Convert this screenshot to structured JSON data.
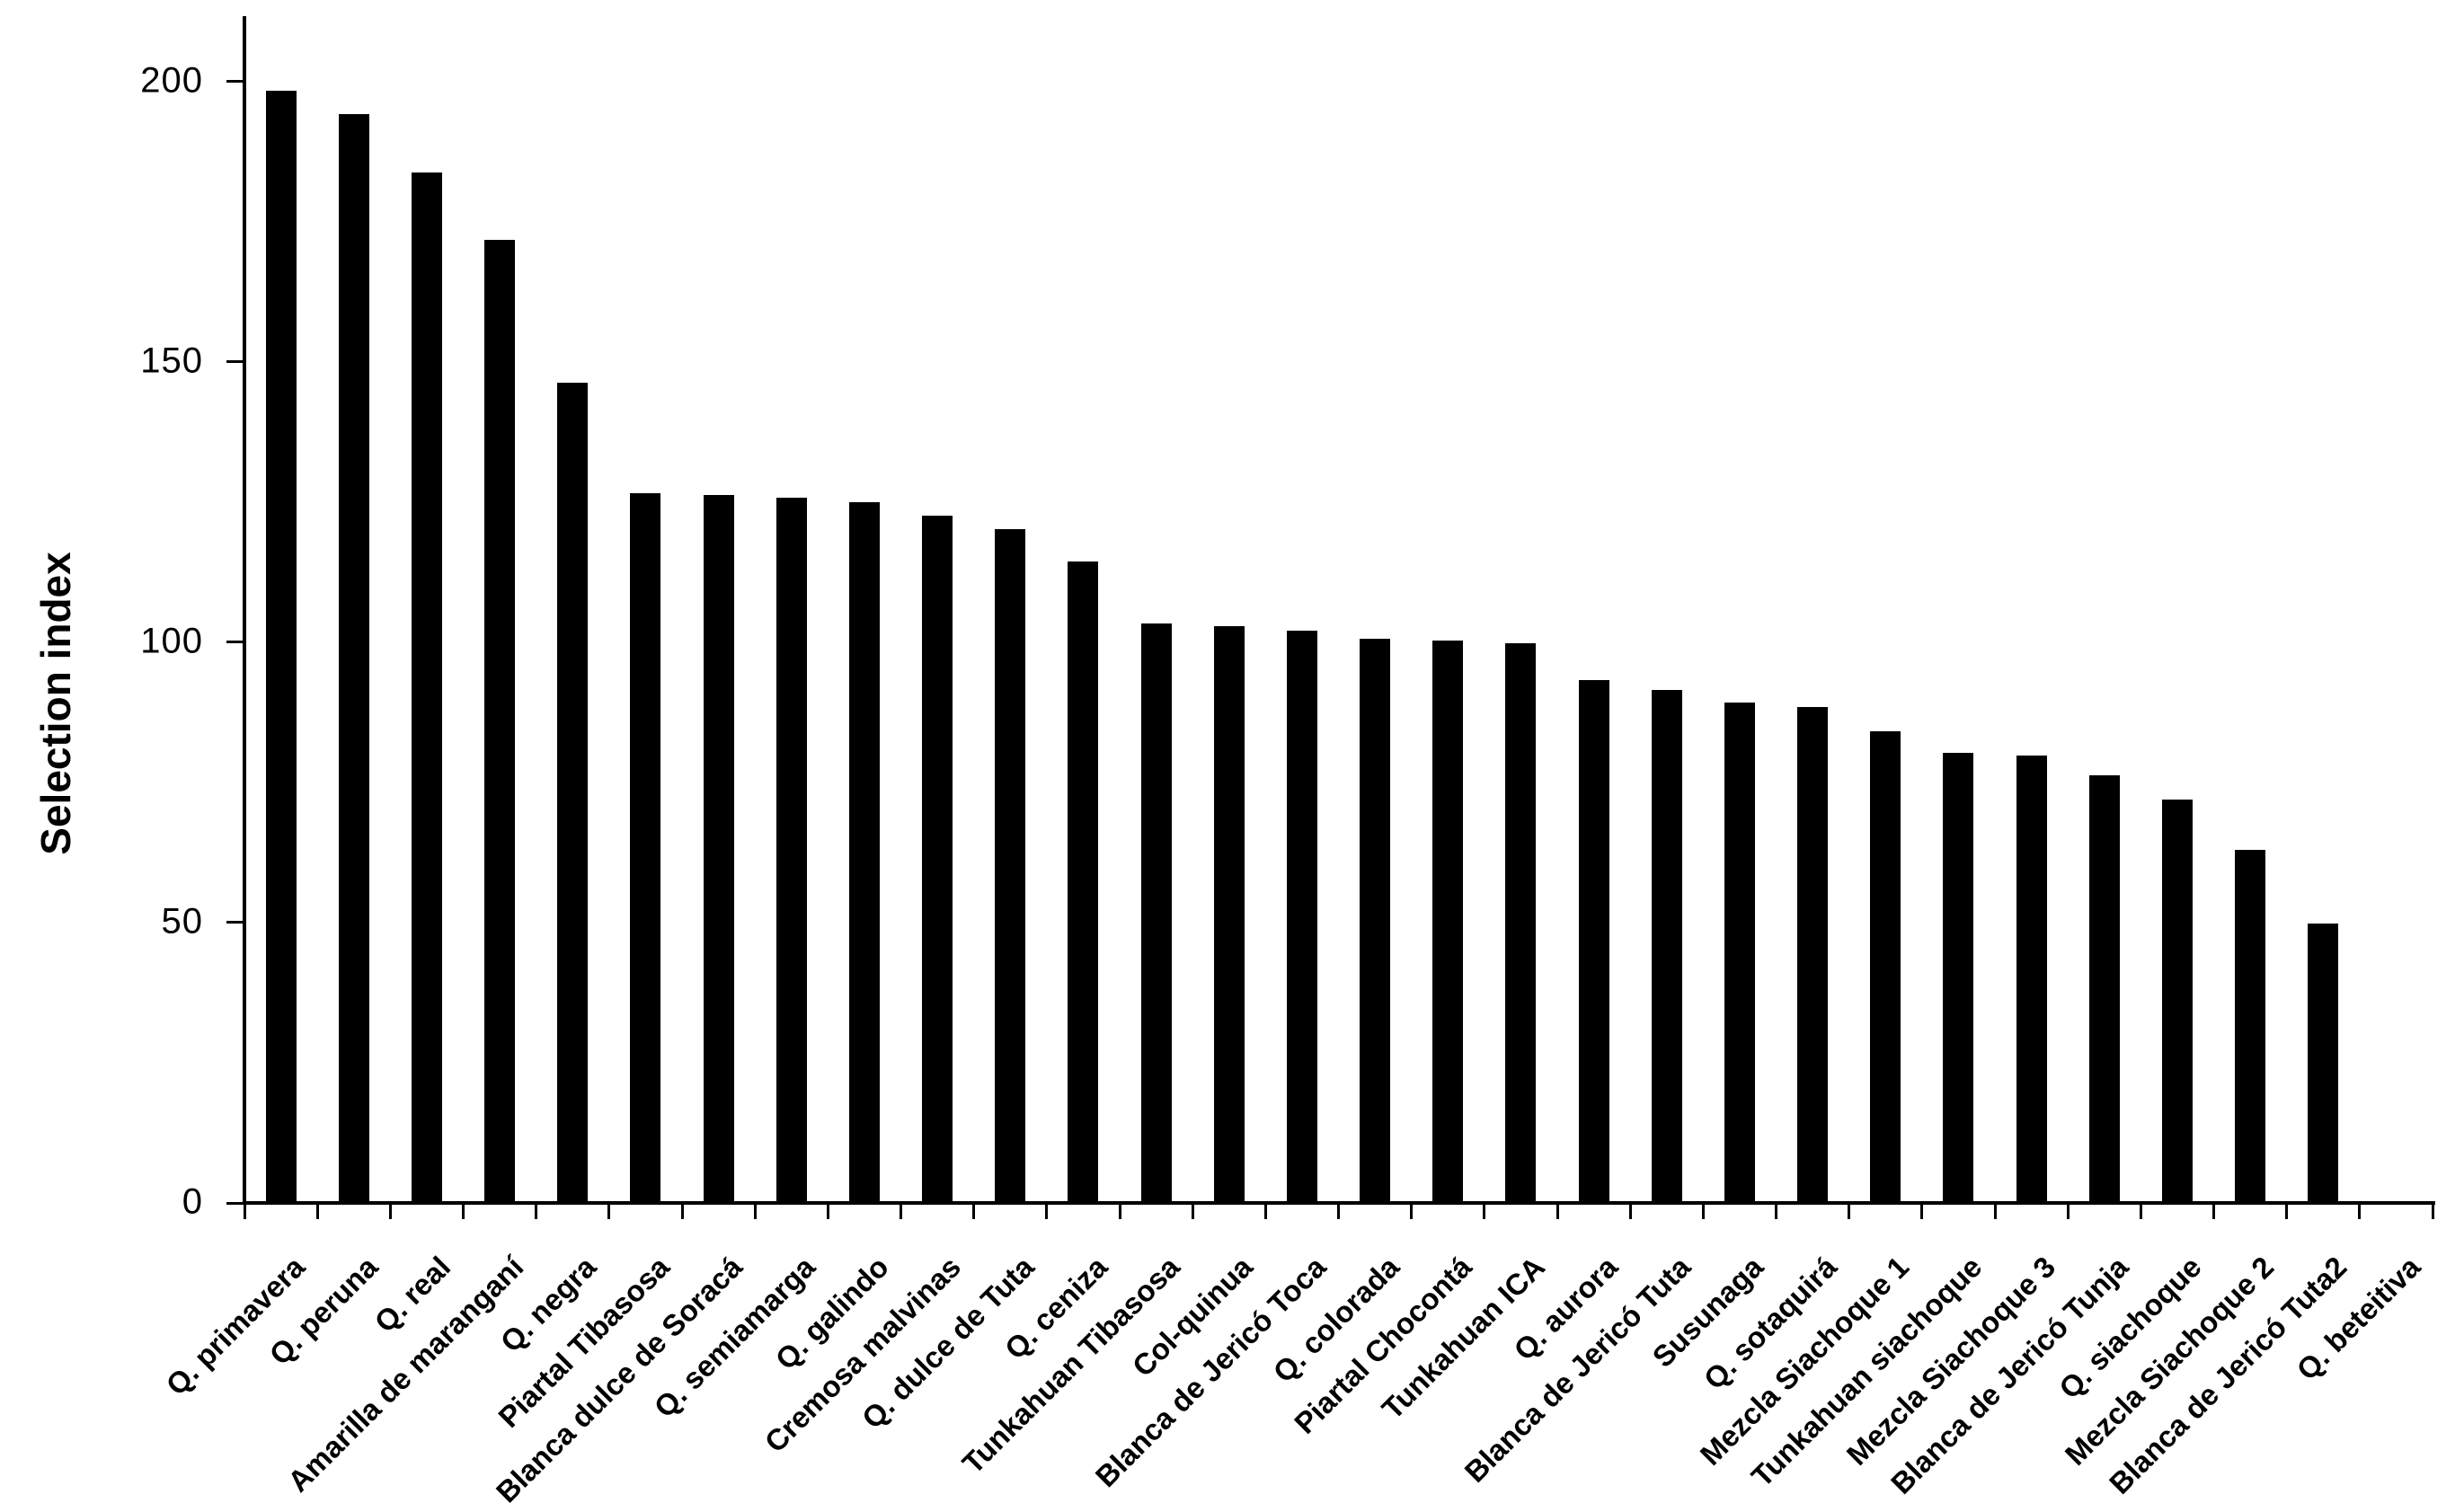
{
  "figure": {
    "background_color": "#ffffff",
    "bar_color": "#000000",
    "axis_color": "#000000",
    "text_color": "#000000"
  },
  "chart_data": {
    "type": "bar",
    "title": "",
    "xlabel": "",
    "ylabel": "Selection index",
    "legend": "none",
    "grid": "off",
    "ylim": [
      0,
      211
    ],
    "yticks": [
      0,
      50,
      100,
      150,
      200
    ],
    "ytick_labels": [
      "0",
      "50",
      "100",
      "150",
      "200"
    ],
    "x_tick_label_rotation_deg": 45,
    "categories": [
      "Q. primavera",
      "Q. peruna",
      "Q. real",
      "Amarilla de maranganí",
      "Q. negra",
      "Piartal Tibasosa",
      "Blanca dulce de Soracá",
      "Q. semiamarga",
      "Q. galindo",
      "Cremosa malvinas",
      "Q. dulce de Tuta",
      "Q. ceniza",
      "Tunkahuan Tibasosa",
      "Col-quinua",
      "Blanca de Jericó Toca",
      "Q. colorada",
      "Piartal Chocontá",
      "Tunkahuan ICA",
      "Q. aurora",
      "Blanca de Jericó Tuta",
      "Susunaga",
      "Q. sotaquirá",
      "Mezcla Siachoque 1",
      "Tunkahuan siachoque",
      "Mezcla Siachoque 3",
      "Blanca de Jericó Tunja",
      "Q. siachoque",
      "Mezcla Siachoque 2",
      "Blanca de Jericó Tuta2",
      "Q. beteitiva"
    ],
    "values": [
      198.3,
      194.1,
      183.8,
      171.8,
      146.2,
      126.6,
      126.2,
      125.8,
      124.9,
      122.6,
      120.1,
      114.3,
      103.4,
      102.9,
      102.1,
      100.6,
      100.3,
      99.8,
      93.2,
      91.5,
      89.3,
      88.5,
      84.1,
      80.2,
      79.7,
      76.3,
      72.0,
      62.9,
      49.8,
      0
    ]
  }
}
